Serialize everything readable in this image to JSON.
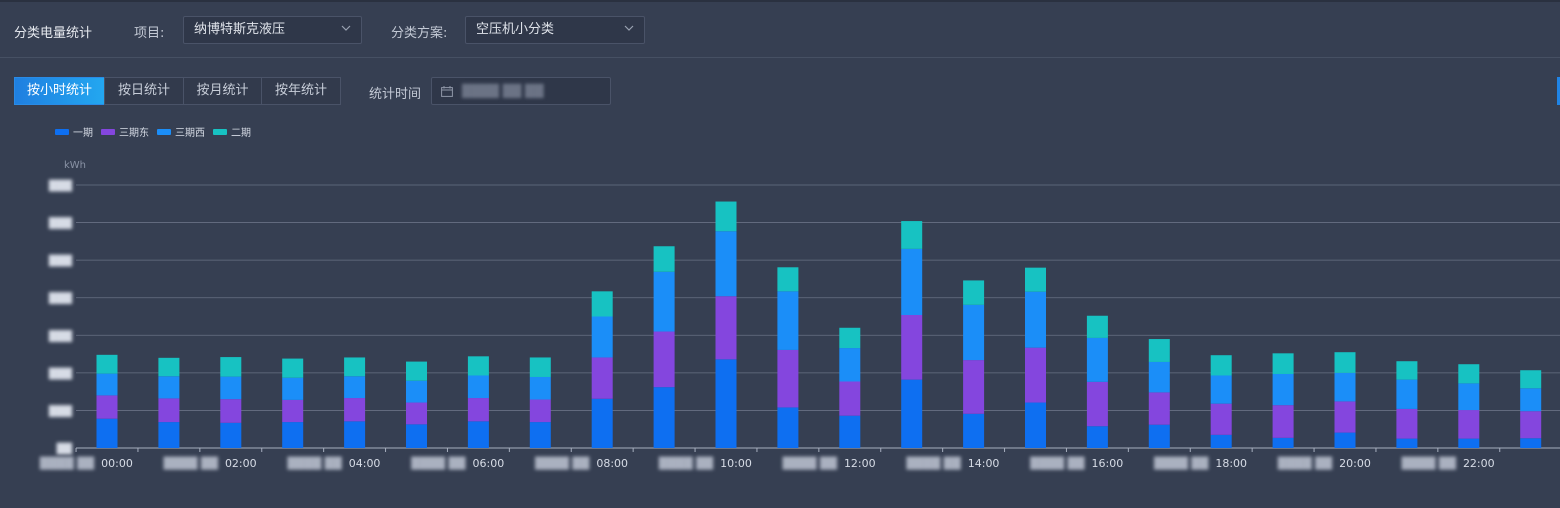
{
  "header": {
    "title": "分类电量统计",
    "project_label": "项目:",
    "project_value": "纳博特斯克液压",
    "scheme_label": "分类方案:",
    "scheme_value": "空压机小分类"
  },
  "tabs": [
    {
      "label": "按小时统计",
      "active": true
    },
    {
      "label": "按日统计",
      "active": false
    },
    {
      "label": "按月统计",
      "active": false
    },
    {
      "label": "按年统计",
      "active": false
    }
  ],
  "time": {
    "label": "统计时间",
    "value": "████ ██ ██",
    "icon": "calendar-icon"
  },
  "colors": {
    "series1": "#0e6ff1",
    "series2": "#8446de",
    "series3": "#1b8ef8",
    "series4": "#17c2c2",
    "grid": "#8a93a6",
    "axis_text": "#d7dce6"
  },
  "chart_data": {
    "type": "bar",
    "stacked": true,
    "ylabel": "kWh",
    "legend_position": "top-left",
    "grid": true,
    "ylim": [
      0,
      7
    ],
    "y_ticks": [
      "███",
      "███",
      "███",
      "███",
      "███",
      "███",
      "███",
      "██"
    ],
    "categories": [
      "00:00",
      "01:00",
      "02:00",
      "03:00",
      "04:00",
      "05:00",
      "06:00",
      "07:00",
      "08:00",
      "09:00",
      "10:00",
      "11:00",
      "12:00",
      "13:00",
      "14:00",
      "15:00",
      "16:00",
      "17:00",
      "18:00",
      "19:00",
      "20:00",
      "21:00",
      "22:00",
      "23:00"
    ],
    "x_tick_labels": [
      {
        "date": "████ ██",
        "time": "00:00",
        "index": 0
      },
      {
        "date": "████ ██",
        "time": "02:00",
        "index": 2
      },
      {
        "date": "████ ██",
        "time": "04:00",
        "index": 4
      },
      {
        "date": "████ ██",
        "time": "06:00",
        "index": 6
      },
      {
        "date": "████ ██",
        "time": "08:00",
        "index": 8
      },
      {
        "date": "████ ██",
        "time": "10:00",
        "index": 10
      },
      {
        "date": "████ ██",
        "time": "12:00",
        "index": 12
      },
      {
        "date": "████ ██",
        "time": "14:00",
        "index": 14
      },
      {
        "date": "████ ██",
        "time": "16:00",
        "index": 16
      },
      {
        "date": "████ ██",
        "time": "18:00",
        "index": 18
      },
      {
        "date": "████ ██",
        "time": "20:00",
        "index": 20
      },
      {
        "date": "████ ██",
        "time": "22:00",
        "index": 22
      }
    ],
    "series": [
      {
        "name": "一期",
        "values": [
          0.78,
          0.69,
          0.67,
          0.69,
          0.71,
          0.63,
          0.71,
          0.69,
          1.31,
          1.62,
          2.36,
          1.08,
          0.86,
          1.82,
          0.91,
          1.21,
          0.58,
          0.62,
          0.35,
          0.27,
          0.41,
          0.25,
          0.25,
          0.26
        ]
      },
      {
        "name": "三期东",
        "values": [
          0.62,
          0.63,
          0.63,
          0.59,
          0.62,
          0.58,
          0.62,
          0.6,
          1.1,
          1.48,
          1.68,
          1.53,
          0.91,
          1.72,
          1.43,
          1.46,
          1.18,
          0.86,
          0.83,
          0.87,
          0.83,
          0.79,
          0.76,
          0.72
        ]
      },
      {
        "name": "三期西",
        "values": [
          0.58,
          0.59,
          0.6,
          0.59,
          0.58,
          0.58,
          0.6,
          0.6,
          1.09,
          1.59,
          1.73,
          1.56,
          0.89,
          1.76,
          1.47,
          1.49,
          1.17,
          0.81,
          0.75,
          0.83,
          0.76,
          0.78,
          0.71,
          0.61
        ]
      },
      {
        "name": "二期",
        "values": [
          0.5,
          0.49,
          0.52,
          0.51,
          0.5,
          0.51,
          0.51,
          0.52,
          0.67,
          0.68,
          0.79,
          0.64,
          0.54,
          0.74,
          0.65,
          0.64,
          0.59,
          0.61,
          0.54,
          0.55,
          0.55,
          0.49,
          0.51,
          0.48
        ]
      }
    ]
  }
}
